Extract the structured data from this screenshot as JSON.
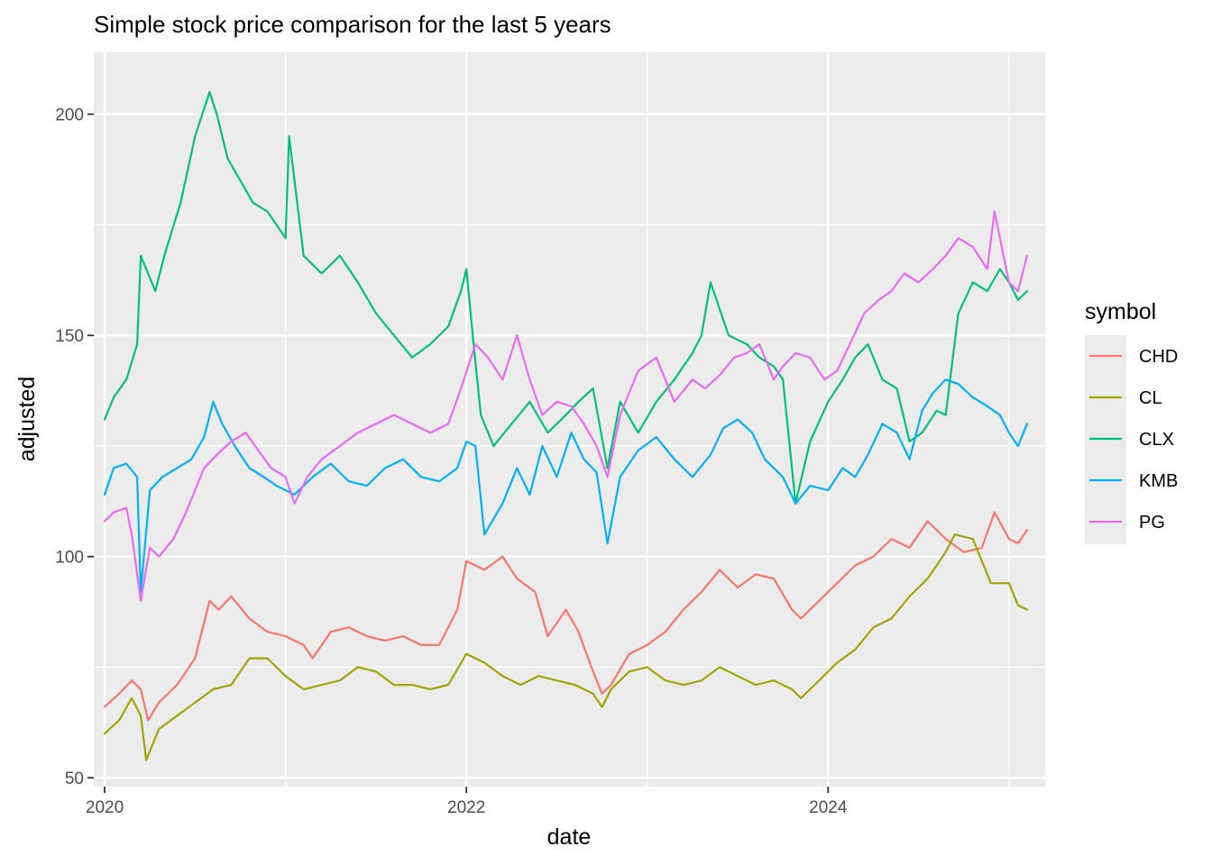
{
  "chart_data": {
    "type": "line",
    "title": "Simple stock price comparison for the last 5 years",
    "xlabel": "date",
    "ylabel": "adjusted",
    "xlim": [
      2019.94,
      2025.2
    ],
    "ylim": [
      48,
      214
    ],
    "x_ticks": [
      2020,
      2022,
      2024
    ],
    "x_tick_labels": [
      "2020",
      "2022",
      "2024"
    ],
    "y_ticks": [
      50,
      100,
      150,
      200
    ],
    "y_tick_labels": [
      "50",
      "100",
      "150",
      "200"
    ],
    "grid": true,
    "legend": {
      "title": "symbol",
      "placement": "right"
    },
    "series": [
      {
        "name": "CHD",
        "color": "#F8766D",
        "x": [
          2020.0,
          2020.08,
          2020.15,
          2020.2,
          2020.24,
          2020.3,
          2020.4,
          2020.5,
          2020.58,
          2020.63,
          2020.7,
          2020.8,
          2020.9,
          2021.0,
          2021.1,
          2021.15,
          2021.25,
          2021.35,
          2021.45,
          2021.55,
          2021.65,
          2021.75,
          2021.85,
          2021.95,
          2022.0,
          2022.1,
          2022.2,
          2022.28,
          2022.38,
          2022.45,
          2022.55,
          2022.62,
          2022.7,
          2022.75,
          2022.8,
          2022.9,
          2023.0,
          2023.1,
          2023.2,
          2023.3,
          2023.4,
          2023.5,
          2023.6,
          2023.7,
          2023.8,
          2023.85,
          2023.95,
          2024.05,
          2024.15,
          2024.25,
          2024.35,
          2024.45,
          2024.55,
          2024.65,
          2024.75,
          2024.85,
          2024.92,
          2025.0,
          2025.05,
          2025.1
        ],
        "y": [
          66,
          69,
          72,
          70,
          63,
          67,
          71,
          77,
          90,
          88,
          91,
          86,
          83,
          82,
          80,
          77,
          83,
          84,
          82,
          81,
          82,
          80,
          80,
          88,
          99,
          97,
          100,
          95,
          92,
          82,
          88,
          83,
          74,
          69,
          71,
          78,
          80,
          83,
          88,
          92,
          97,
          93,
          96,
          95,
          88,
          86,
          90,
          94,
          98,
          100,
          104,
          102,
          108,
          104,
          101,
          102,
          110,
          104,
          103,
          106
        ]
      },
      {
        "name": "CL",
        "color": "#A3A500",
        "x": [
          2020.0,
          2020.08,
          2020.15,
          2020.2,
          2020.23,
          2020.3,
          2020.4,
          2020.5,
          2020.6,
          2020.7,
          2020.8,
          2020.9,
          2021.0,
          2021.1,
          2021.2,
          2021.3,
          2021.4,
          2021.5,
          2021.6,
          2021.7,
          2021.8,
          2021.9,
          2022.0,
          2022.1,
          2022.2,
          2022.3,
          2022.4,
          2022.5,
          2022.6,
          2022.7,
          2022.75,
          2022.8,
          2022.9,
          2023.0,
          2023.1,
          2023.2,
          2023.3,
          2023.4,
          2023.5,
          2023.6,
          2023.7,
          2023.8,
          2023.85,
          2023.95,
          2024.05,
          2024.15,
          2024.25,
          2024.35,
          2024.45,
          2024.55,
          2024.65,
          2024.7,
          2024.8,
          2024.9,
          2025.0,
          2025.05,
          2025.1
        ],
        "y": [
          60,
          63,
          68,
          64,
          54,
          61,
          64,
          67,
          70,
          71,
          77,
          77,
          73,
          70,
          71,
          72,
          75,
          74,
          71,
          71,
          70,
          71,
          78,
          76,
          73,
          71,
          73,
          72,
          71,
          69,
          66,
          70,
          74,
          75,
          72,
          71,
          72,
          75,
          73,
          71,
          72,
          70,
          68,
          72,
          76,
          79,
          84,
          86,
          91,
          95,
          101,
          105,
          104,
          94,
          94,
          89,
          88
        ]
      },
      {
        "name": "CLX",
        "color": "#00BF7D",
        "x": [
          2020.0,
          2020.05,
          2020.12,
          2020.18,
          2020.2,
          2020.28,
          2020.33,
          2020.42,
          2020.5,
          2020.58,
          2020.62,
          2020.68,
          2020.75,
          2020.82,
          2020.9,
          2021.0,
          2021.02,
          2021.1,
          2021.2,
          2021.3,
          2021.4,
          2021.5,
          2021.6,
          2021.7,
          2021.8,
          2021.9,
          2021.97,
          2022.0,
          2022.04,
          2022.08,
          2022.15,
          2022.25,
          2022.35,
          2022.45,
          2022.55,
          2022.62,
          2022.7,
          2022.78,
          2022.85,
          2022.95,
          2023.05,
          2023.15,
          2023.25,
          2023.3,
          2023.35,
          2023.45,
          2023.55,
          2023.62,
          2023.7,
          2023.75,
          2023.82,
          2023.9,
          2024.0,
          2024.08,
          2024.15,
          2024.22,
          2024.3,
          2024.38,
          2024.45,
          2024.52,
          2024.6,
          2024.65,
          2024.72,
          2024.8,
          2024.88,
          2024.95,
          2025.0,
          2025.05,
          2025.1
        ],
        "y": [
          131,
          136,
          140,
          148,
          168,
          160,
          168,
          180,
          195,
          205,
          200,
          190,
          185,
          180,
          178,
          172,
          195,
          168,
          164,
          168,
          162,
          155,
          150,
          145,
          148,
          152,
          160,
          165,
          148,
          132,
          125,
          130,
          135,
          128,
          132,
          135,
          138,
          120,
          135,
          128,
          135,
          140,
          146,
          150,
          162,
          150,
          148,
          145,
          143,
          140,
          112,
          126,
          135,
          140,
          145,
          148,
          140,
          138,
          126,
          128,
          133,
          132,
          155,
          162,
          160,
          165,
          162,
          158,
          160
        ]
      },
      {
        "name": "KMB",
        "color": "#00B0F6",
        "x": [
          2020.0,
          2020.05,
          2020.12,
          2020.18,
          2020.2,
          2020.25,
          2020.32,
          2020.4,
          2020.48,
          2020.55,
          2020.6,
          2020.65,
          2020.72,
          2020.8,
          2020.88,
          2020.95,
          2021.05,
          2021.15,
          2021.25,
          2021.35,
          2021.45,
          2021.55,
          2021.65,
          2021.75,
          2021.85,
          2021.95,
          2022.0,
          2022.05,
          2022.1,
          2022.2,
          2022.28,
          2022.35,
          2022.42,
          2022.5,
          2022.58,
          2022.65,
          2022.72,
          2022.78,
          2022.85,
          2022.95,
          2023.05,
          2023.15,
          2023.25,
          2023.35,
          2023.42,
          2023.5,
          2023.58,
          2023.65,
          2023.75,
          2023.82,
          2023.9,
          2024.0,
          2024.08,
          2024.15,
          2024.22,
          2024.3,
          2024.38,
          2024.45,
          2024.52,
          2024.58,
          2024.65,
          2024.72,
          2024.8,
          2024.88,
          2024.95,
          2025.0,
          2025.05,
          2025.1
        ],
        "y": [
          114,
          120,
          121,
          118,
          92,
          115,
          118,
          120,
          122,
          127,
          135,
          130,
          125,
          120,
          118,
          116,
          114,
          118,
          121,
          117,
          116,
          120,
          122,
          118,
          117,
          120,
          126,
          125,
          105,
          112,
          120,
          114,
          125,
          118,
          128,
          122,
          119,
          103,
          118,
          124,
          127,
          122,
          118,
          123,
          129,
          131,
          128,
          122,
          118,
          112,
          116,
          115,
          120,
          118,
          123,
          130,
          128,
          122,
          133,
          137,
          140,
          139,
          136,
          134,
          132,
          128,
          125,
          130
        ]
      },
      {
        "name": "PG",
        "color": "#E76BF3",
        "x": [
          2020.0,
          2020.05,
          2020.12,
          2020.15,
          2020.2,
          2020.25,
          2020.3,
          2020.38,
          2020.45,
          2020.5,
          2020.55,
          2020.62,
          2020.7,
          2020.78,
          2020.85,
          2020.92,
          2021.0,
          2021.05,
          2021.12,
          2021.2,
          2021.3,
          2021.4,
          2021.5,
          2021.6,
          2021.7,
          2021.8,
          2021.9,
          2021.97,
          2022.05,
          2022.12,
          2022.2,
          2022.28,
          2022.35,
          2022.42,
          2022.5,
          2022.58,
          2022.65,
          2022.72,
          2022.78,
          2022.85,
          2022.95,
          2023.05,
          2023.15,
          2023.25,
          2023.32,
          2023.4,
          2023.48,
          2023.55,
          2023.62,
          2023.7,
          2023.75,
          2023.82,
          2023.9,
          2023.98,
          2024.05,
          2024.12,
          2024.2,
          2024.28,
          2024.35,
          2024.42,
          2024.5,
          2024.58,
          2024.65,
          2024.72,
          2024.8,
          2024.88,
          2024.92,
          2025.0,
          2025.05,
          2025.1
        ],
        "y": [
          108,
          110,
          111,
          105,
          90,
          102,
          100,
          104,
          110,
          115,
          120,
          123,
          126,
          128,
          124,
          120,
          118,
          112,
          118,
          122,
          125,
          128,
          130,
          132,
          130,
          128,
          130,
          138,
          148,
          145,
          140,
          150,
          140,
          132,
          135,
          134,
          130,
          125,
          118,
          132,
          142,
          145,
          135,
          140,
          138,
          141,
          145,
          146,
          148,
          140,
          143,
          146,
          145,
          140,
          142,
          148,
          155,
          158,
          160,
          164,
          162,
          165,
          168,
          172,
          170,
          165,
          178,
          162,
          160,
          168
        ]
      }
    ]
  }
}
